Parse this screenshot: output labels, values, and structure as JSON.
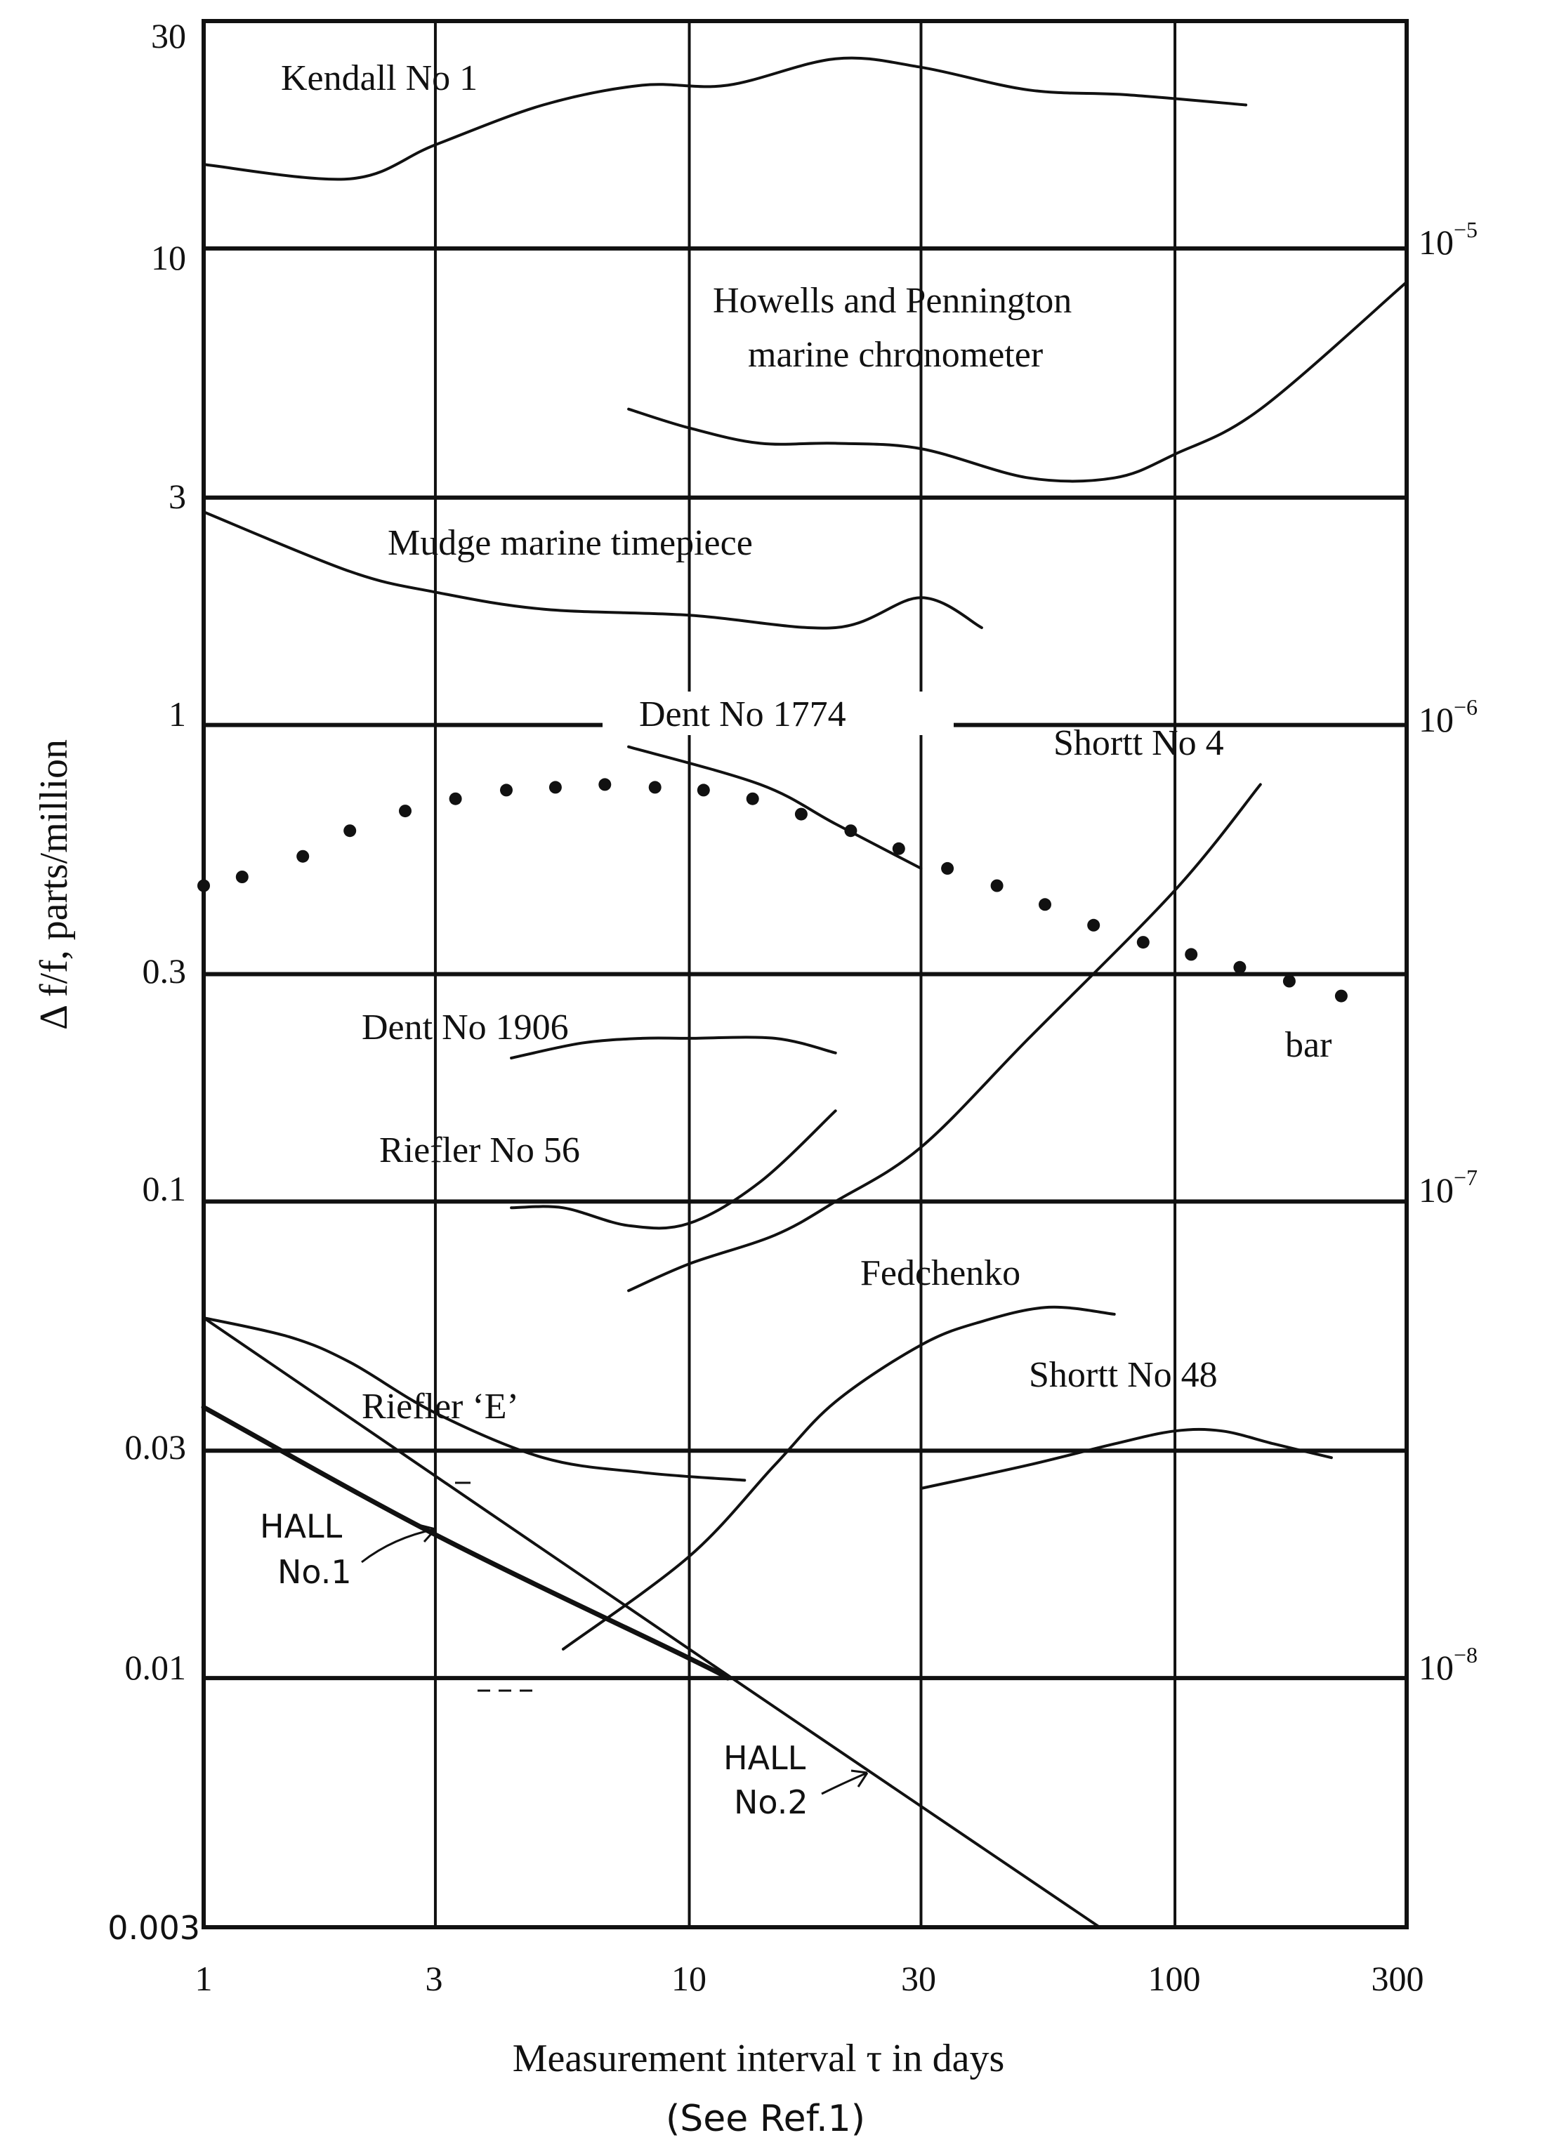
{
  "chart_data": {
    "type": "line",
    "x_scale": "log",
    "y_scale": "log",
    "xlim": [
      1,
      300
    ],
    "ylim": [
      0.003,
      30
    ],
    "xticks": [
      "1",
      "3",
      "10",
      "30",
      "100",
      "300"
    ],
    "yticks": [
      "30",
      "10",
      "3",
      "1",
      "0.3",
      "0.1",
      "0.03",
      "0.01",
      "0.003"
    ],
    "right_ticks": [
      {
        "base": "10",
        "exp": "−5"
      },
      {
        "base": "10",
        "exp": "−6"
      },
      {
        "base": "10",
        "exp": "−7"
      },
      {
        "base": "10",
        "exp": "−8"
      }
    ],
    "xlabel": "Measurement interval τ in days",
    "ylabel": "Δ f/f, parts/million",
    "note": "(See Ref.1)",
    "grid": true,
    "series": [
      {
        "name": "Kendall No 1",
        "style": "line",
        "x": [
          1,
          2,
          3,
          5,
          8,
          12,
          20,
          30,
          50,
          80,
          140
        ],
        "y": [
          15,
          14,
          16.5,
          20,
          22,
          22,
          25,
          24,
          21.5,
          21,
          20
        ]
      },
      {
        "name": "Howells and Pennington marine chronometer",
        "style": "line",
        "x": [
          7.5,
          10,
          14,
          20,
          30,
          50,
          75,
          100,
          150,
          300
        ],
        "y": [
          4.6,
          4.2,
          3.9,
          3.9,
          3.8,
          3.3,
          3.3,
          3.7,
          4.6,
          8.5
        ]
      },
      {
        "name": "Mudge marine timepiece",
        "style": "line",
        "x": [
          1,
          2,
          3,
          5,
          10,
          20,
          30,
          40
        ],
        "y": [
          2.8,
          2.1,
          1.9,
          1.75,
          1.7,
          1.6,
          1.85,
          1.6
        ]
      },
      {
        "name": "Dent No 1774",
        "style": "line",
        "x": [
          7.5,
          14,
          20,
          30
        ],
        "y": [
          0.9,
          0.75,
          0.62,
          0.5
        ]
      },
      {
        "name": "bar",
        "style": "dotted",
        "x": [
          1,
          1.2,
          1.6,
          2,
          2.6,
          3.3,
          4.2,
          5.3,
          6.7,
          8.5,
          10.7,
          13.5,
          17,
          21.5,
          27,
          34,
          43,
          54,
          68,
          86,
          108,
          136,
          172,
          220
        ],
        "y": [
          0.46,
          0.48,
          0.53,
          0.6,
          0.66,
          0.7,
          0.73,
          0.74,
          0.75,
          0.74,
          0.73,
          0.7,
          0.65,
          0.6,
          0.55,
          0.5,
          0.46,
          0.42,
          0.38,
          0.35,
          0.33,
          0.31,
          0.29,
          0.27
        ]
      },
      {
        "name": "Shortt No 4",
        "style": "line",
        "x": [
          7.5,
          10,
          15,
          20,
          30,
          50,
          100,
          150
        ],
        "y": [
          0.065,
          0.074,
          0.085,
          0.1,
          0.13,
          0.22,
          0.45,
          0.75
        ]
      },
      {
        "name": "Dent No 1906",
        "style": "line",
        "x": [
          4.3,
          6,
          8,
          10,
          15,
          20
        ],
        "y": [
          0.2,
          0.215,
          0.22,
          0.22,
          0.22,
          0.205
        ]
      },
      {
        "name": "Riefler No 56",
        "style": "line",
        "x": [
          4.3,
          5.5,
          7.5,
          10,
          14,
          20
        ],
        "y": [
          0.097,
          0.097,
          0.089,
          0.09,
          0.11,
          0.155
        ]
      },
      {
        "name": "Fedchenko",
        "style": "line",
        "x": [
          5.5,
          10,
          15,
          20,
          30,
          40,
          55,
          75
        ],
        "y": [
          0.0115,
          0.018,
          0.028,
          0.038,
          0.05,
          0.056,
          0.06,
          0.058
        ]
      },
      {
        "name": "Shortt No 48",
        "style": "line",
        "x": [
          30,
          50,
          75,
          100,
          125,
          160,
          210
        ],
        "y": [
          0.025,
          0.028,
          0.031,
          0.033,
          0.033,
          0.031,
          0.029
        ]
      },
      {
        "name": "Riefler 'E'",
        "style": "line",
        "x": [
          1,
          1.5,
          2,
          3,
          5,
          8,
          13
        ],
        "y": [
          0.057,
          0.052,
          0.046,
          0.036,
          0.029,
          0.027,
          0.026
        ]
      },
      {
        "name": "HALL No.1",
        "style": "thick",
        "x": [
          1,
          3,
          10,
          12
        ],
        "y": [
          0.037,
          0.02,
          0.011,
          0.01
        ]
      },
      {
        "name": "HALL No.2",
        "style": "thin",
        "x": [
          1,
          10,
          70
        ],
        "y": [
          0.057,
          0.0115,
          0.003
        ]
      }
    ],
    "labels": {
      "kendall": "Kendall No 1",
      "howells_line1": "Howells and Pennington",
      "howells_line2": "marine chronometer",
      "mudge": "Mudge marine timepiece",
      "dent1774": "Dent No 1774",
      "shortt4": "Shortt No 4",
      "bar": "bar",
      "dent1906": "Dent No 1906",
      "riefler56": "Riefler No 56",
      "fedchenko": "Fedchenko",
      "shortt48": "Shortt No 48",
      "rieflerE": "Riefler ‘E’",
      "hall1_line1": "HALL",
      "hall1_line2": "No.1",
      "hall2_line1": "HALL",
      "hall2_line2": "No.2"
    }
  }
}
